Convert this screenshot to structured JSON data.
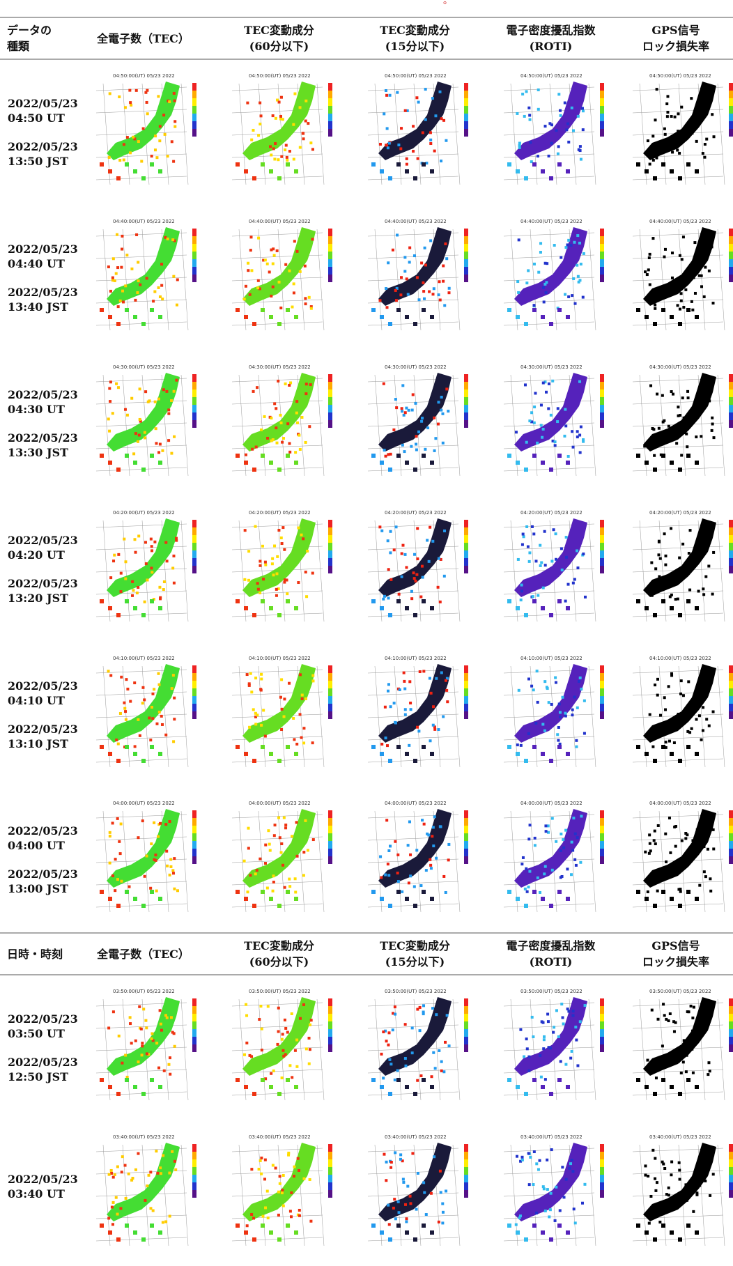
{
  "header_partial": "。",
  "headers": [
    {
      "l1": "データの",
      "l2": "種類"
    },
    {
      "l1": "全電子数（TEC）",
      "l2": ""
    },
    {
      "l1": "TEC変動成分",
      "l2": "(60分以下)"
    },
    {
      "l1": "TEC変動成分",
      "l2": "(15分以下)"
    },
    {
      "l1": "電子密度擾乱指数",
      "l2": "(ROTI)"
    },
    {
      "l1": "GPS信号",
      "l2": "ロック損失率"
    }
  ],
  "headers2": [
    {
      "l1": "日時・時刻",
      "l2": ""
    },
    {
      "l1": "全電子数（TEC）",
      "l2": ""
    },
    {
      "l1": "TEC変動成分",
      "l2": "(60分以下)"
    },
    {
      "l1": "TEC変動成分",
      "l2": "(15分以下)"
    },
    {
      "l1": "電子密度擾乱指数",
      "l2": "(ROTI)"
    },
    {
      "l1": "GPS信号",
      "l2": "ロック損失率"
    }
  ],
  "rows": [
    {
      "ut": "2022/05/23\n04:50 UT",
      "jst": "2022/05/23\n13:50 JST",
      "map_title": "04:50:00(UT) 05/23 2022"
    },
    {
      "ut": "2022/05/23\n04:40 UT",
      "jst": "2022/05/23\n13:40 JST",
      "map_title": "04:40:00(UT) 05/23 2022"
    },
    {
      "ut": "2022/05/23\n04:30 UT",
      "jst": "2022/05/23\n13:30 JST",
      "map_title": "04:30:00(UT) 05/23 2022"
    },
    {
      "ut": "2022/05/23\n04:20 UT",
      "jst": "2022/05/23\n13:20 JST",
      "map_title": "04:20:00(UT) 05/23 2022"
    },
    {
      "ut": "2022/05/23\n04:10 UT",
      "jst": "2022/05/23\n13:10 JST",
      "map_title": "04:10:00(UT) 05/23 2022"
    },
    {
      "ut": "2022/05/23\n04:00 UT",
      "jst": "2022/05/23\n13:00 JST",
      "map_title": "04:00:00(UT) 05/23 2022"
    },
    {
      "ut": "2022/05/23\n03:50 UT",
      "jst": "2022/05/23\n12:50 JST",
      "map_title": "03:50:00(UT) 05/23 2022"
    },
    {
      "ut": "2022/05/23\n03:40 UT",
      "jst": "",
      "map_title": "03:40:00(UT) 05/23 2022"
    }
  ],
  "map_columns": [
    {
      "name": "tec",
      "fill": "#44dd33",
      "accent": "#ffcc00",
      "hot": "#ee3311"
    },
    {
      "name": "tec60",
      "fill": "#66dd22",
      "accent": "#ffdd00",
      "hot": "#ee3311"
    },
    {
      "name": "tec15",
      "fill": "#1a1a3a",
      "accent": "#ee2211",
      "hot": "#2299ee"
    },
    {
      "name": "roti",
      "fill": "#5522bb",
      "accent": "#2233cc",
      "hot": "#33bbee"
    },
    {
      "name": "lol",
      "fill": "#000000",
      "accent": "#000000",
      "hot": "#000000"
    }
  ]
}
